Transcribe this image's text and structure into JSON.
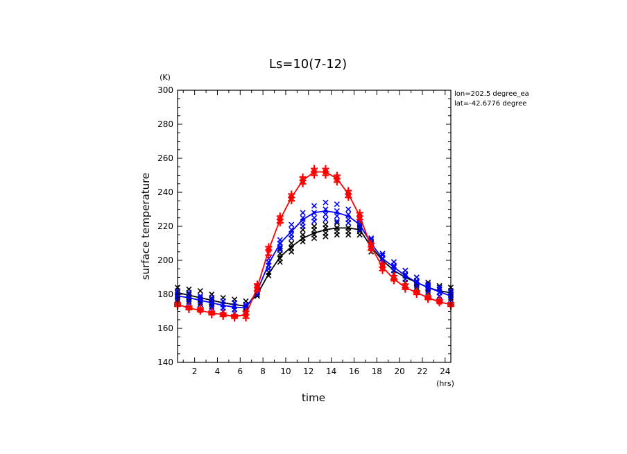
{
  "chart_data": {
    "type": "line",
    "title": "Ls=10(7-12)",
    "xlabel": "time",
    "ylabel": "surface temperature",
    "xunit": "(hrs)",
    "yunit": "(K)",
    "xlim": [
      0.5,
      24.5
    ],
    "ylim": [
      140,
      300
    ],
    "xticks": [
      2,
      4,
      6,
      8,
      10,
      12,
      14,
      16,
      18,
      20,
      22,
      24
    ],
    "yticks": [
      140,
      160,
      180,
      200,
      220,
      240,
      260,
      280,
      300
    ],
    "grid": false,
    "annotations": [
      "lon=202.5 degree_ea",
      "lat=-42.6776 degree"
    ],
    "x": [
      0.5,
      1.5,
      2.5,
      3.5,
      4.5,
      5.5,
      6.5,
      7.5,
      8.5,
      9.5,
      10.5,
      11.5,
      12.5,
      13.5,
      14.5,
      15.5,
      16.5,
      17.5,
      18.5,
      19.5,
      20.5,
      21.5,
      22.5,
      23.5,
      24.5
    ],
    "series": [
      {
        "color": "#000000",
        "marker": "x",
        "values": [
          181,
          179.5,
          178,
          176.5,
          175,
          174,
          173,
          180,
          192,
          202,
          208,
          213,
          216,
          218,
          219,
          219,
          218,
          208,
          200,
          194,
          190,
          187,
          184,
          182,
          181
        ],
        "scatter": [
          [
            177,
            179,
            181,
            184
          ],
          [
            176,
            178,
            180,
            183
          ],
          [
            175,
            177,
            179,
            182
          ],
          [
            173,
            175,
            177,
            180
          ],
          [
            172,
            174,
            176,
            178
          ],
          [
            171,
            173,
            175,
            177
          ],
          [
            170,
            172,
            174,
            176
          ],
          [
            179,
            180,
            181,
            182
          ],
          [
            191,
            193,
            195,
            197
          ],
          [
            199,
            201,
            204,
            207
          ],
          [
            205,
            207,
            210,
            213
          ],
          [
            211,
            213,
            215,
            218
          ],
          [
            213,
            215,
            218,
            220
          ],
          [
            214,
            216,
            219,
            221
          ],
          [
            215,
            217,
            219,
            222
          ],
          [
            215,
            217,
            219,
            222
          ],
          [
            215,
            217,
            219,
            221
          ],
          [
            205,
            208,
            211,
            213
          ],
          [
            197,
            199,
            201,
            203
          ],
          [
            192,
            194,
            196,
            199
          ],
          [
            187,
            189,
            191,
            194
          ],
          [
            184,
            186,
            188,
            190
          ],
          [
            181,
            183,
            185,
            187
          ],
          [
            179,
            181,
            183,
            185
          ],
          [
            178,
            180,
            182,
            184
          ]
        ]
      },
      {
        "color": "#0000ff",
        "marker": "x",
        "values": [
          179,
          178,
          176.5,
          175,
          173.5,
          172.5,
          172,
          182,
          198,
          210,
          217,
          224,
          228,
          229,
          228,
          226,
          221,
          210,
          201,
          196,
          191,
          187,
          184,
          181.5,
          179
        ],
        "scatter": [
          [
            176,
            178,
            180,
            182
          ],
          [
            175,
            177,
            179,
            181
          ],
          [
            174,
            176,
            178,
            179
          ],
          [
            172,
            174,
            176,
            178
          ],
          [
            170,
            172,
            174,
            176
          ],
          [
            169,
            171,
            173,
            175
          ],
          [
            169,
            171,
            173,
            174
          ],
          [
            180,
            182,
            184,
            185
          ],
          [
            195,
            197,
            199,
            201
          ],
          [
            206,
            208,
            210,
            212
          ],
          [
            213,
            215,
            218,
            221
          ],
          [
            220,
            222,
            225,
            228
          ],
          [
            223,
            225,
            228,
            232
          ],
          [
            224,
            227,
            230,
            234
          ],
          [
            223,
            226,
            229,
            233
          ],
          [
            222,
            224,
            227,
            230
          ],
          [
            218,
            220,
            222,
            224
          ],
          [
            208,
            210,
            212,
            213
          ],
          [
            199,
            201,
            203,
            204
          ],
          [
            194,
            196,
            197,
            199
          ],
          [
            189,
            191,
            192,
            194
          ],
          [
            185,
            187,
            188,
            190
          ],
          [
            182,
            184,
            185,
            186
          ],
          [
            179,
            181,
            183,
            184
          ],
          [
            177,
            179,
            181,
            182
          ]
        ]
      },
      {
        "color": "#ff0000",
        "marker": "+",
        "values": [
          174,
          172,
          170.5,
          169,
          168,
          167,
          168,
          184,
          206,
          224,
          237,
          247,
          252,
          252,
          248,
          239,
          226,
          208,
          196,
          189,
          184,
          181,
          178,
          175.5,
          174
        ],
        "scatter": [
          [
            173,
            174,
            175
          ],
          [
            171,
            172,
            173
          ],
          [
            170,
            171,
            172
          ],
          [
            168,
            169,
            170
          ],
          [
            167,
            168,
            169
          ],
          [
            166,
            167,
            168
          ],
          [
            166,
            168,
            170
          ],
          [
            182,
            184,
            186
          ],
          [
            203,
            206,
            208
          ],
          [
            222,
            224,
            226
          ],
          [
            235,
            237,
            239
          ],
          [
            245,
            247,
            249
          ],
          [
            250,
            252,
            254
          ],
          [
            250,
            252,
            254
          ],
          [
            246,
            248,
            250
          ],
          [
            237,
            239,
            241
          ],
          [
            224,
            226,
            228
          ],
          [
            206,
            208,
            210
          ],
          [
            194,
            196,
            198
          ],
          [
            188,
            189,
            191
          ],
          [
            183,
            184,
            186
          ],
          [
            180,
            181,
            182
          ],
          [
            177,
            178,
            179
          ],
          [
            175,
            176,
            177
          ],
          [
            173,
            174,
            175
          ]
        ]
      }
    ]
  }
}
